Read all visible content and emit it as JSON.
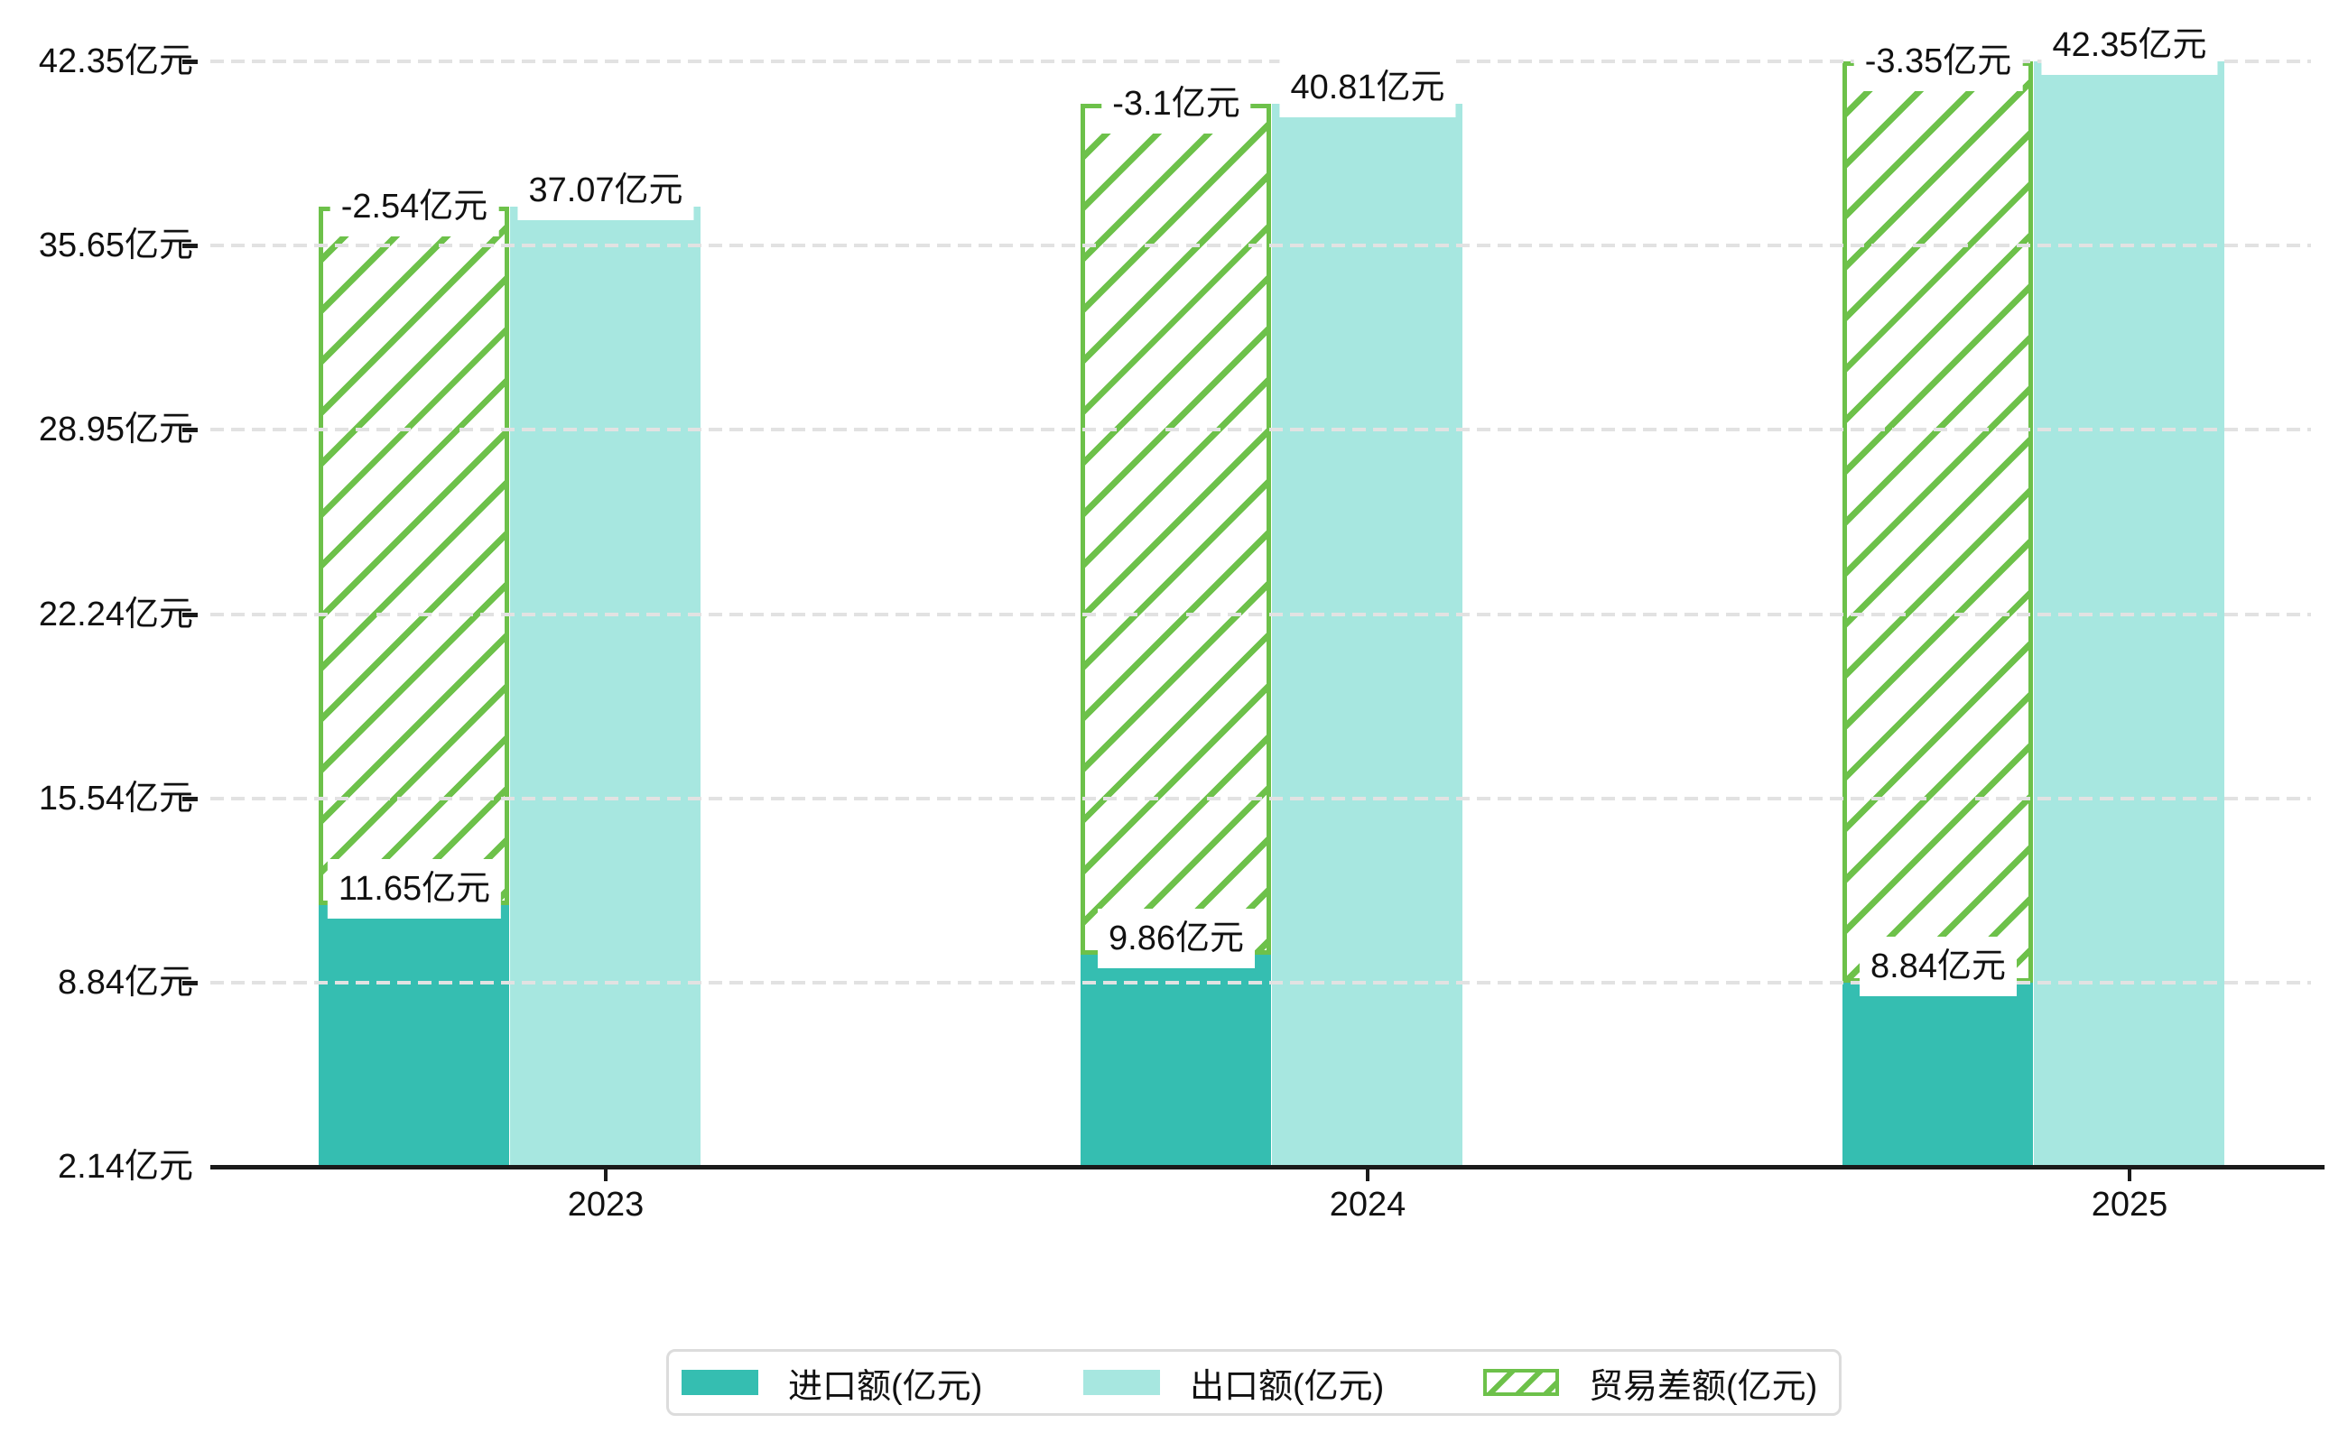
{
  "chart_data": {
    "type": "bar",
    "title": "",
    "categories": [
      "2023",
      "2024",
      "2025"
    ],
    "series": [
      {
        "name": "进口额(亿元)",
        "style": "solid",
        "color": "#35beb1",
        "values": [
          11.65,
          9.86,
          8.84
        ],
        "data_labels": [
          "11.65亿元",
          "9.86亿元",
          "8.84亿元"
        ]
      },
      {
        "name": "出口额(亿元)",
        "style": "solid",
        "color": "#a7e7e0",
        "values": [
          37.07,
          40.81,
          42.35
        ],
        "data_labels": [
          "37.07亿元",
          "40.81亿元",
          "42.35亿元"
        ]
      },
      {
        "name": "贸易差额(亿元)",
        "style": "hatched",
        "color": "#6dc14a",
        "values": [
          -2.54,
          -3.1,
          -3.35
        ],
        "data_labels": [
          "-2.54亿元",
          "-3.1亿元",
          "-3.35亿元"
        ],
        "bar_span_note": "hatched bar drawn from the 进口额 bar top up to the 出口额 bar top"
      }
    ],
    "y_axis": {
      "tick_labels": [
        "42.35亿元",
        "35.65亿元",
        "28.95亿元",
        "22.24亿元",
        "15.54亿元",
        "8.84亿元",
        "2.14亿元"
      ],
      "tick_values": [
        42.35,
        35.65,
        28.95,
        22.24,
        15.54,
        8.84,
        2.14
      ],
      "min": 2.14,
      "max": 42.35
    },
    "x_axis": {
      "tick_labels": [
        "2023",
        "2024",
        "2025"
      ]
    },
    "grid": "horizontal dashed, drawn over bars",
    "legend_position": "bottom",
    "unit": "亿元"
  },
  "legend": {
    "items": [
      {
        "label": "进口额(亿元)",
        "swatch": "solid-import"
      },
      {
        "label": "出口额(亿元)",
        "swatch": "solid-export"
      },
      {
        "label": "贸易差额(亿元)",
        "swatch": "hatched-green"
      }
    ]
  },
  "colors": {
    "import": "#35beb1",
    "export": "#a7e7e0",
    "balance_hatch": "#6dc14a",
    "gridline": "#e2e2e2",
    "axis": "#1a1a1a",
    "label_text": "#111111",
    "legend_border": "#dcdcdc",
    "background": "#ffffff"
  }
}
